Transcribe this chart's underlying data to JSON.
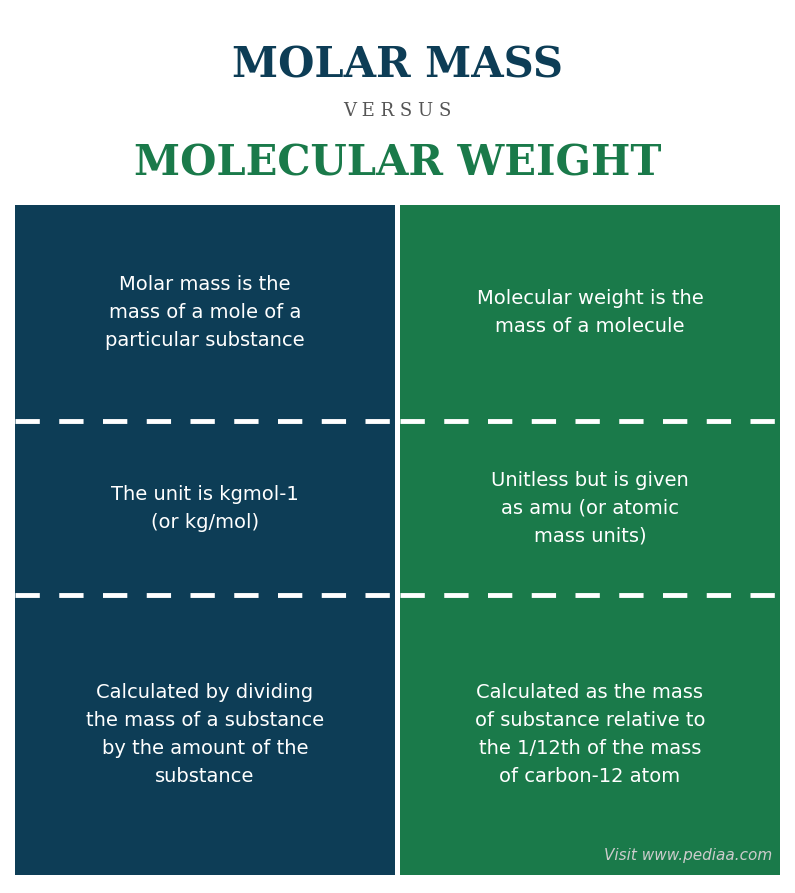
{
  "title1": "MOLAR MASS",
  "versus": "V E R S U S",
  "title2": "MOLECULAR WEIGHT",
  "title1_color": "#0d3d56",
  "versus_color": "#555555",
  "title2_color": "#1a7a4a",
  "left_bg": "#0d3d56",
  "right_bg": "#1a7a4a",
  "page_bg": "#ffffff",
  "text_color": "#ffffff",
  "cells": [
    [
      "Molar mass is the\nmass of a mole of a\nparticular substance",
      "Molecular weight is the\nmass of a molecule"
    ],
    [
      "The unit is kgmol-1\n(or kg/mol)",
      "Unitless but is given\nas amu (or atomic\nmass units)"
    ],
    [
      "Calculated by dividing\nthe mass of a substance\nby the amount of the\nsubstance",
      "Calculated as the mass\nof substance relative to\nthe 1/12th of the mass\nof carbon-12 atom"
    ]
  ],
  "watermark": "Visit www.pediaa.com",
  "watermark_color": "#cccccc"
}
